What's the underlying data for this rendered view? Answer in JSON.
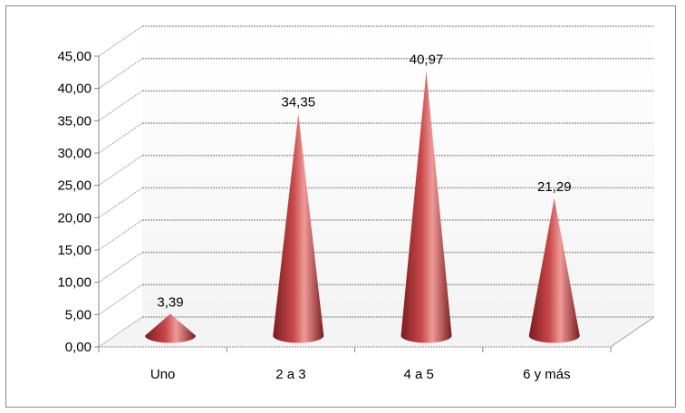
{
  "chart_data": {
    "type": "bar",
    "mark_shape": "cone",
    "categories": [
      "Uno",
      "2 a 3",
      "4 a 5",
      "6 y más"
    ],
    "values": [
      3.39,
      34.35,
      40.97,
      21.29
    ],
    "data_labels": [
      "3,39",
      "34,35",
      "40,97",
      "21,29"
    ],
    "y_ticks": [
      "0,00",
      "5,00",
      "10,00",
      "15,00",
      "20,00",
      "25,00",
      "30,00",
      "35,00",
      "40,00",
      "45,00"
    ],
    "ylim": [
      0,
      45
    ],
    "title": "",
    "xlabel": "",
    "ylabel": "",
    "grid": true,
    "legend": "none",
    "colors": {
      "cone_dark": "#7a1c1e",
      "cone_mid": "#c8484a",
      "cone_light": "#ef9a98",
      "gridline": "#a0a0a0",
      "axis": "#8a8a8a",
      "wall_bottom": "#e0e0e0"
    }
  }
}
